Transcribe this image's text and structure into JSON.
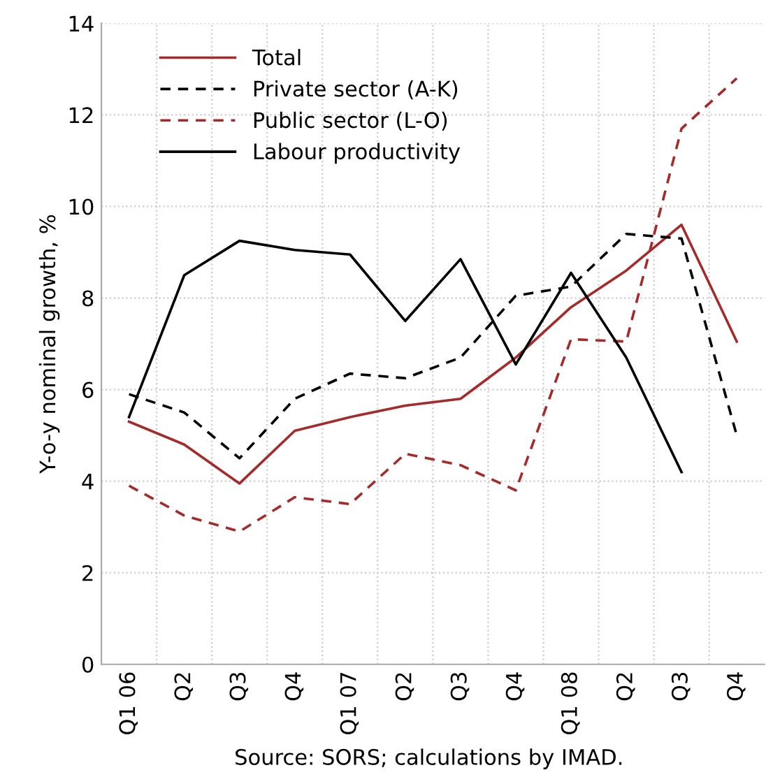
{
  "chart_data": {
    "type": "line",
    "ylabel": "Y-o-y nominal growth, %",
    "categories": [
      "Q1 06",
      "Q2",
      "Q3",
      "Q4",
      "Q1 07",
      "Q2",
      "Q3",
      "Q4",
      "Q1 08",
      "Q2",
      "Q3",
      "Q4"
    ],
    "series": [
      {
        "name": "Total",
        "color": "#a52a2a",
        "line_style": "solid",
        "values": [
          5.3,
          4.8,
          3.95,
          5.1,
          5.4,
          5.65,
          5.8,
          6.7,
          7.8,
          8.6,
          9.6,
          7.05
        ]
      },
      {
        "name": "Private sector (A-K)",
        "color": "#000000",
        "line_style": "dashed",
        "values": [
          5.9,
          5.5,
          4.5,
          5.8,
          6.35,
          6.25,
          6.7,
          8.05,
          8.25,
          9.4,
          9.3,
          5.0
        ]
      },
      {
        "name": "Public sector (L-O)",
        "color": "#a52a2a",
        "line_style": "dashed",
        "values": [
          3.9,
          3.25,
          2.9,
          3.65,
          3.5,
          4.6,
          4.35,
          3.8,
          7.1,
          7.05,
          11.7,
          12.8
        ]
      },
      {
        "name": "Labour productivity",
        "color": "#000000",
        "line_style": "solid",
        "values": [
          5.4,
          8.5,
          9.25,
          9.05,
          8.95,
          7.5,
          8.85,
          6.55,
          8.55,
          6.7,
          4.2,
          null
        ]
      }
    ],
    "ylim": [
      0,
      14
    ],
    "yticks": [
      0,
      2,
      4,
      6,
      8,
      10,
      12,
      14
    ],
    "grid": true,
    "legend": "top left",
    "marker": "none",
    "annotations": [
      "Source: SORS; calculations by IMAD."
    ]
  }
}
